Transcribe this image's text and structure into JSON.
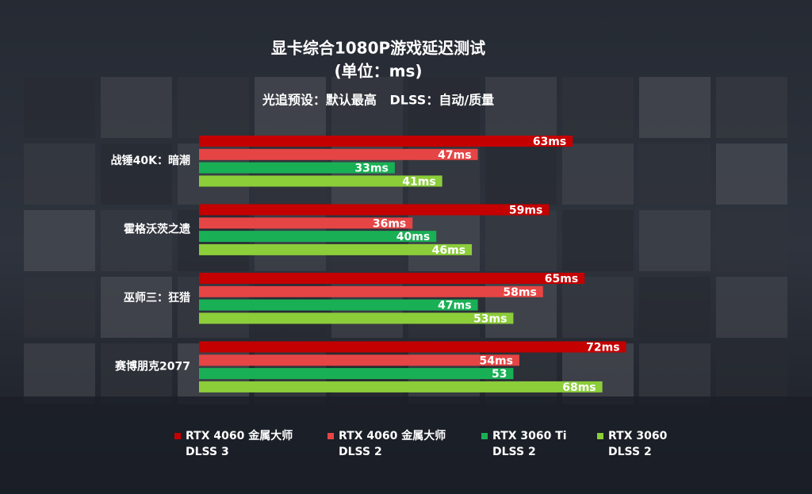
{
  "chart_data": {
    "type": "hbar",
    "title": "显卡综合1080P游戏延迟测试",
    "subtitle": "(单位：ms)",
    "annotation": "光追预设：默认最高   DLSS：自动/质量",
    "categories": [
      "战锤40K：暗潮",
      "霍格沃茨之遗",
      "巫师三：狂猎",
      "赛博朋克2077"
    ],
    "series": [
      {
        "name": "RTX 4060 金属大师 DLSS 3",
        "color": "#c40000",
        "values": [
          63,
          59,
          65,
          72
        ],
        "value_labels": [
          "63ms",
          "59ms",
          "65ms",
          "72ms"
        ]
      },
      {
        "name": "RTX 4060 金属大师 DLSS 2",
        "color": "#e64545",
        "values": [
          47,
          36,
          58,
          54
        ],
        "value_labels": [
          "47ms",
          "36ms",
          "58ms",
          "54ms"
        ]
      },
      {
        "name": "RTX 3060 Ti DLSS 2",
        "color": "#19b055",
        "values": [
          33,
          40,
          47,
          53
        ],
        "value_labels": [
          "33ms",
          "40ms",
          "47ms",
          "53"
        ]
      },
      {
        "name": "RTX 3060 DLSS 2",
        "color": "#8ccd3a",
        "values": [
          41,
          46,
          53,
          68
        ],
        "value_labels": [
          "41ms",
          "46ms",
          "53ms",
          "68ms"
        ]
      }
    ]
  }
}
